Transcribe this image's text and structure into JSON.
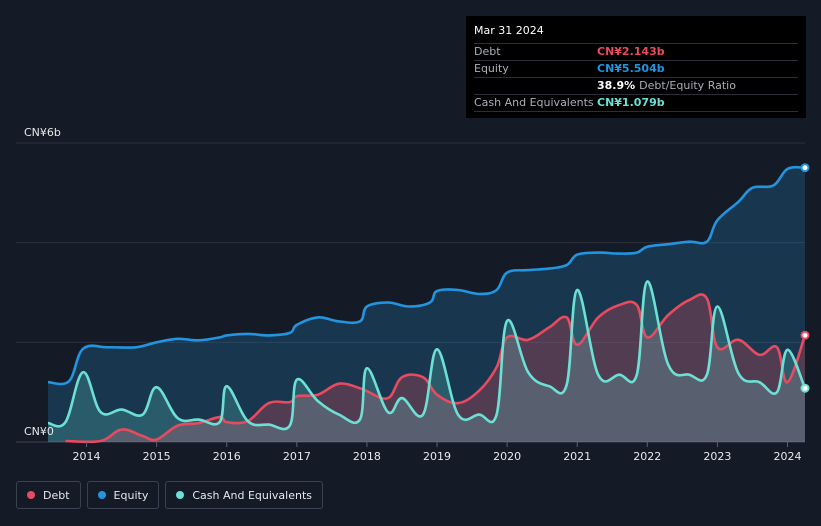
{
  "tooltip": {
    "date": "Mar 31 2024",
    "debt_label": "Debt",
    "debt_value": "CN¥2.143b",
    "equity_label": "Equity",
    "equity_value": "CN¥5.504b",
    "ratio_pct": "38.9%",
    "ratio_label": "Debt/Equity Ratio",
    "cash_label": "Cash And Equivalents",
    "cash_value": "CN¥1.079b"
  },
  "colors": {
    "debt": "#e84a5f",
    "equity": "#2394df",
    "cash": "#6ce0d4",
    "debt_text": "#e84a5f",
    "equity_text": "#2394df",
    "cash_text": "#6ce0d4"
  },
  "legend": [
    {
      "label": "Debt",
      "color": "#e84a5f"
    },
    {
      "label": "Equity",
      "color": "#2394df"
    },
    {
      "label": "Cash And Equivalents",
      "color": "#6ce0d4"
    }
  ],
  "chart_data": {
    "type": "area",
    "ylabel_top": "CN¥6b",
    "ylabel_bottom": "CN¥0",
    "ylim": [
      0,
      6
    ],
    "xlim": [
      2013.45,
      2024.25
    ],
    "x_ticks": [
      "2014",
      "2015",
      "2016",
      "2017",
      "2018",
      "2019",
      "2020",
      "2021",
      "2022",
      "2023",
      "2024"
    ],
    "grid": true,
    "series": [
      {
        "name": "Equity",
        "points": [
          [
            2013.45,
            1.2
          ],
          [
            2013.75,
            1.22
          ],
          [
            2013.95,
            1.87
          ],
          [
            2014.3,
            1.9
          ],
          [
            2014.7,
            1.9
          ],
          [
            2015.0,
            2.0
          ],
          [
            2015.3,
            2.07
          ],
          [
            2015.6,
            2.04
          ],
          [
            2015.9,
            2.1
          ],
          [
            2016.0,
            2.14
          ],
          [
            2016.3,
            2.17
          ],
          [
            2016.6,
            2.14
          ],
          [
            2016.9,
            2.19
          ],
          [
            2017.0,
            2.35
          ],
          [
            2017.3,
            2.5
          ],
          [
            2017.6,
            2.42
          ],
          [
            2017.9,
            2.42
          ],
          [
            2018.0,
            2.72
          ],
          [
            2018.3,
            2.8
          ],
          [
            2018.6,
            2.72
          ],
          [
            2018.9,
            2.8
          ],
          [
            2019.0,
            3.03
          ],
          [
            2019.3,
            3.05
          ],
          [
            2019.6,
            2.97
          ],
          [
            2019.85,
            3.05
          ],
          [
            2020.0,
            3.4
          ],
          [
            2020.3,
            3.45
          ],
          [
            2020.6,
            3.48
          ],
          [
            2020.85,
            3.55
          ],
          [
            2021.0,
            3.76
          ],
          [
            2021.3,
            3.8
          ],
          [
            2021.6,
            3.78
          ],
          [
            2021.85,
            3.8
          ],
          [
            2022.0,
            3.92
          ],
          [
            2022.3,
            3.97
          ],
          [
            2022.6,
            4.02
          ],
          [
            2022.85,
            4.02
          ],
          [
            2023.0,
            4.45
          ],
          [
            2023.3,
            4.82
          ],
          [
            2023.5,
            5.1
          ],
          [
            2023.8,
            5.15
          ],
          [
            2024.0,
            5.48
          ],
          [
            2024.25,
            5.504
          ]
        ]
      },
      {
        "name": "Debt",
        "points": [
          [
            2013.7,
            0.02
          ],
          [
            2014.2,
            0.02
          ],
          [
            2014.5,
            0.25
          ],
          [
            2014.8,
            0.12
          ],
          [
            2015.0,
            0.05
          ],
          [
            2015.3,
            0.33
          ],
          [
            2015.6,
            0.38
          ],
          [
            2015.9,
            0.5
          ],
          [
            2016.0,
            0.4
          ],
          [
            2016.3,
            0.42
          ],
          [
            2016.6,
            0.78
          ],
          [
            2016.9,
            0.8
          ],
          [
            2017.0,
            0.92
          ],
          [
            2017.3,
            0.95
          ],
          [
            2017.6,
            1.17
          ],
          [
            2017.9,
            1.08
          ],
          [
            2018.0,
            1.02
          ],
          [
            2018.3,
            0.88
          ],
          [
            2018.5,
            1.3
          ],
          [
            2018.8,
            1.3
          ],
          [
            2019.0,
            0.95
          ],
          [
            2019.3,
            0.78
          ],
          [
            2019.6,
            1.03
          ],
          [
            2019.85,
            1.5
          ],
          [
            2020.0,
            2.1
          ],
          [
            2020.3,
            2.05
          ],
          [
            2020.6,
            2.3
          ],
          [
            2020.85,
            2.5
          ],
          [
            2021.0,
            1.95
          ],
          [
            2021.3,
            2.5
          ],
          [
            2021.6,
            2.75
          ],
          [
            2021.85,
            2.75
          ],
          [
            2022.0,
            2.1
          ],
          [
            2022.3,
            2.55
          ],
          [
            2022.6,
            2.85
          ],
          [
            2022.85,
            2.88
          ],
          [
            2023.0,
            1.9
          ],
          [
            2023.3,
            2.05
          ],
          [
            2023.6,
            1.75
          ],
          [
            2023.85,
            1.9
          ],
          [
            2024.0,
            1.2
          ],
          [
            2024.25,
            2.143
          ]
        ]
      },
      {
        "name": "Cash And Equivalents",
        "points": [
          [
            2013.45,
            0.38
          ],
          [
            2013.7,
            0.4
          ],
          [
            2013.95,
            1.4
          ],
          [
            2014.2,
            0.6
          ],
          [
            2014.5,
            0.65
          ],
          [
            2014.8,
            0.55
          ],
          [
            2015.0,
            1.1
          ],
          [
            2015.3,
            0.48
          ],
          [
            2015.6,
            0.45
          ],
          [
            2015.9,
            0.4
          ],
          [
            2016.0,
            1.12
          ],
          [
            2016.3,
            0.42
          ],
          [
            2016.6,
            0.35
          ],
          [
            2016.9,
            0.33
          ],
          [
            2017.0,
            1.25
          ],
          [
            2017.3,
            0.82
          ],
          [
            2017.6,
            0.55
          ],
          [
            2017.9,
            0.45
          ],
          [
            2018.0,
            1.48
          ],
          [
            2018.3,
            0.6
          ],
          [
            2018.5,
            0.88
          ],
          [
            2018.8,
            0.55
          ],
          [
            2019.0,
            1.86
          ],
          [
            2019.3,
            0.55
          ],
          [
            2019.6,
            0.55
          ],
          [
            2019.85,
            0.55
          ],
          [
            2020.0,
            2.43
          ],
          [
            2020.3,
            1.4
          ],
          [
            2020.6,
            1.12
          ],
          [
            2020.85,
            1.15
          ],
          [
            2021.0,
            3.05
          ],
          [
            2021.3,
            1.35
          ],
          [
            2021.6,
            1.35
          ],
          [
            2021.85,
            1.35
          ],
          [
            2022.0,
            3.22
          ],
          [
            2022.3,
            1.55
          ],
          [
            2022.6,
            1.35
          ],
          [
            2022.85,
            1.35
          ],
          [
            2023.0,
            2.72
          ],
          [
            2023.3,
            1.38
          ],
          [
            2023.6,
            1.2
          ],
          [
            2023.85,
            1.0
          ],
          [
            2024.0,
            1.85
          ],
          [
            2024.25,
            1.079
          ]
        ]
      }
    ]
  }
}
